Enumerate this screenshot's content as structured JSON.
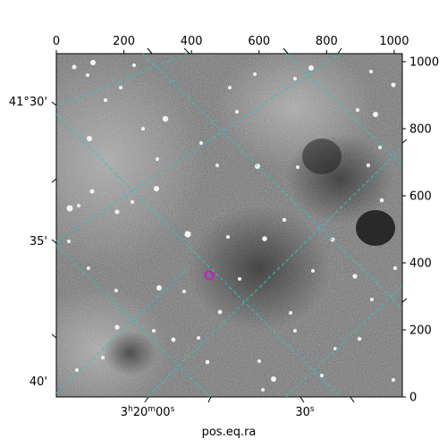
{
  "figure": {
    "x_axis_label": "pos.eq.ra",
    "pixel_x_ticks": [
      "0",
      "200",
      "400",
      "600",
      "800",
      "1000"
    ],
    "pixel_y_ticks": [
      "0",
      "200",
      "400",
      "600",
      "800",
      "1000"
    ],
    "ra_ticks": [
      "3h20m00s",
      "30s"
    ],
    "dec_ticks": [
      "41°30'",
      "35'",
      "40'"
    ],
    "grid_color": "#2ec4c4",
    "marker_color": "#e600e6",
    "background_color": "#ffffff"
  }
}
